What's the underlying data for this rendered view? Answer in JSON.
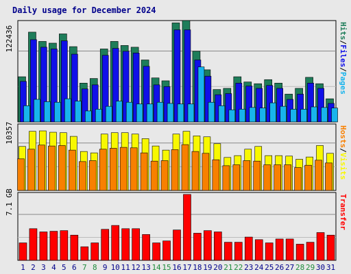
{
  "title": "Daily usage for December 2024",
  "chart_data": [
    {
      "type": "bar",
      "name": "hits-files-pages",
      "categories": [
        "1",
        "2",
        "3",
        "4",
        "5",
        "6",
        "7",
        "8",
        "9",
        "10",
        "11",
        "12",
        "13",
        "14",
        "15",
        "16",
        "17",
        "18",
        "19",
        "20",
        "21",
        "22",
        "23",
        "24",
        "25",
        "26",
        "27",
        "28",
        "29",
        "30",
        "31"
      ],
      "weekend_days": [
        "7",
        "8",
        "14",
        "15",
        "21",
        "22",
        "28",
        "29"
      ],
      "y_tick_label": "122436",
      "y_tick_value": 122436,
      "ylim": [
        0,
        175000
      ],
      "series": [
        {
          "name": "Hits",
          "color": "#1e7d5a",
          "values": [
            78000,
            155000,
            139000,
            136000,
            152000,
            130000,
            67000,
            75000,
            126000,
            139000,
            132000,
            129000,
            107000,
            76000,
            71000,
            171000,
            175000,
            122000,
            90000,
            56000,
            58000,
            78000,
            69000,
            66000,
            73000,
            67000,
            48000,
            58000,
            77000,
            66000,
            40000
          ]
        },
        {
          "name": "Files",
          "color": "#1010e8",
          "values": [
            70000,
            142000,
            129000,
            126000,
            140000,
            117000,
            57000,
            64000,
            115000,
            127000,
            122000,
            119000,
            96000,
            64000,
            61000,
            159000,
            159000,
            107000,
            79000,
            47000,
            49000,
            67000,
            62000,
            58000,
            63000,
            58000,
            39000,
            48000,
            67000,
            58000,
            32000
          ]
        },
        {
          "name": "Pages",
          "color": "#18b4ec",
          "values": [
            28000,
            39000,
            35000,
            34000,
            40000,
            36000,
            19000,
            22000,
            27000,
            36000,
            34000,
            31000,
            31000,
            34000,
            32000,
            31000,
            31000,
            95000,
            34000,
            28000,
            21000,
            22000,
            25000,
            24000,
            33000,
            27000,
            22000,
            22000,
            26000,
            25000,
            24000
          ]
        }
      ],
      "legend": [
        "Hits",
        "/",
        "Files",
        "/",
        "Pages"
      ]
    },
    {
      "type": "bar",
      "name": "visits-hosts",
      "categories": [
        "1",
        "2",
        "3",
        "4",
        "5",
        "6",
        "7",
        "8",
        "9",
        "10",
        "11",
        "12",
        "13",
        "14",
        "15",
        "16",
        "17",
        "18",
        "19",
        "20",
        "21",
        "22",
        "23",
        "24",
        "25",
        "26",
        "27",
        "28",
        "29",
        "30",
        "31"
      ],
      "y_tick_label": "10357",
      "y_tick_value": 10357,
      "ylim": [
        0,
        14500
      ],
      "series": [
        {
          "name": "Visits",
          "color": "#f8f800",
          "values": [
            9600,
            12900,
            13000,
            12700,
            12600,
            11800,
            8500,
            8200,
            12300,
            12600,
            12600,
            12300,
            11300,
            9700,
            8800,
            12300,
            12900,
            11900,
            11700,
            10200,
            7200,
            7600,
            9000,
            9600,
            7600,
            7600,
            7500,
            6800,
            7300,
            9800,
            8100
          ]
        },
        {
          "name": "Hosts",
          "color": "#f88000",
          "values": [
            6900,
            9000,
            9900,
            9700,
            9800,
            8800,
            6300,
            6500,
            9000,
            9200,
            9400,
            9300,
            8200,
            6400,
            6500,
            8900,
            10000,
            8500,
            8100,
            6700,
            5400,
            5600,
            6500,
            6400,
            5600,
            5600,
            5600,
            5000,
            5500,
            6600,
            6000
          ]
        }
      ],
      "legend": [
        "Hosts",
        "/",
        "Visits"
      ]
    },
    {
      "type": "bar",
      "name": "transfer",
      "categories": [
        "1",
        "2",
        "3",
        "4",
        "5",
        "6",
        "7",
        "8",
        "9",
        "10",
        "11",
        "12",
        "13",
        "14",
        "15",
        "16",
        "17",
        "18",
        "19",
        "20",
        "21",
        "22",
        "23",
        "24",
        "25",
        "26",
        "27",
        "28",
        "29",
        "30",
        "31"
      ],
      "y_tick_label": "7.1 GB",
      "y_tick_value": 7.1,
      "ylim": [
        0,
        10.5
      ],
      "series": [
        {
          "name": "Transfer",
          "color": "#ff0000",
          "values": [
            2.7,
            4.9,
            4.4,
            4.5,
            4.6,
            3.9,
            2.1,
            2.7,
            4.8,
            5.4,
            4.9,
            4.9,
            4.0,
            2.7,
            3.0,
            4.7,
            10.2,
            4.2,
            4.6,
            4.4,
            2.8,
            2.8,
            3.6,
            3.2,
            2.7,
            3.3,
            3.3,
            2.5,
            2.8,
            4.3,
            3.9
          ]
        }
      ],
      "legend": [
        "Transfer"
      ]
    }
  ]
}
